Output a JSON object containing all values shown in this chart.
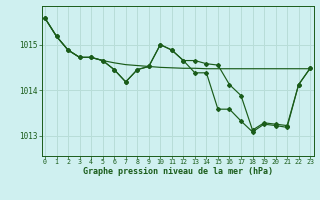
{
  "title": "Graphe pression niveau de la mer (hPa)",
  "background_color": "#cff0f0",
  "grid_color": "#b8ddd8",
  "line_color": "#1a5c1a",
  "yticks": [
    1013,
    1014,
    1015
  ],
  "ylim": [
    1012.55,
    1015.85
  ],
  "xlim": [
    -0.3,
    23.3
  ],
  "smooth_x": [
    0,
    1,
    2,
    3,
    4,
    5,
    6,
    7,
    8,
    9,
    10,
    11,
    12,
    13,
    14,
    15,
    16,
    17,
    18,
    19,
    20,
    21,
    22,
    23
  ],
  "smooth_y": [
    1015.58,
    1015.18,
    1014.88,
    1014.72,
    1014.72,
    1014.65,
    1014.6,
    1014.56,
    1014.54,
    1014.52,
    1014.5,
    1014.49,
    1014.48,
    1014.48,
    1014.47,
    1014.47,
    1014.47,
    1014.47,
    1014.47,
    1014.47,
    1014.47,
    1014.47,
    1014.47,
    1014.47
  ],
  "line_upper_x": [
    0,
    1,
    2,
    3,
    4,
    5,
    6,
    7,
    8,
    9,
    10,
    11,
    12,
    13,
    14,
    15,
    16,
    17,
    18,
    19,
    20,
    21,
    22,
    23
  ],
  "line_upper_y": [
    1015.58,
    1015.18,
    1014.88,
    1014.72,
    1014.72,
    1014.65,
    1014.45,
    1014.18,
    1014.45,
    1014.52,
    1015.0,
    1014.88,
    1014.65,
    1014.65,
    1014.58,
    1014.55,
    1014.12,
    1013.88,
    1013.12,
    1013.28,
    1013.25,
    1013.22,
    1014.12,
    1014.48
  ],
  "line_lower_x": [
    0,
    1,
    2,
    3,
    4,
    5,
    6,
    7,
    8,
    9,
    10,
    11,
    12,
    13,
    14,
    15,
    16,
    17,
    18,
    19,
    20,
    21,
    22,
    23
  ],
  "line_lower_y": [
    1015.58,
    1015.18,
    1014.88,
    1014.72,
    1014.72,
    1014.65,
    1014.45,
    1014.18,
    1014.45,
    1014.52,
    1015.0,
    1014.88,
    1014.65,
    1014.38,
    1014.38,
    1013.58,
    1013.58,
    1013.32,
    1013.08,
    1013.25,
    1013.22,
    1013.18,
    1014.12,
    1014.48
  ]
}
